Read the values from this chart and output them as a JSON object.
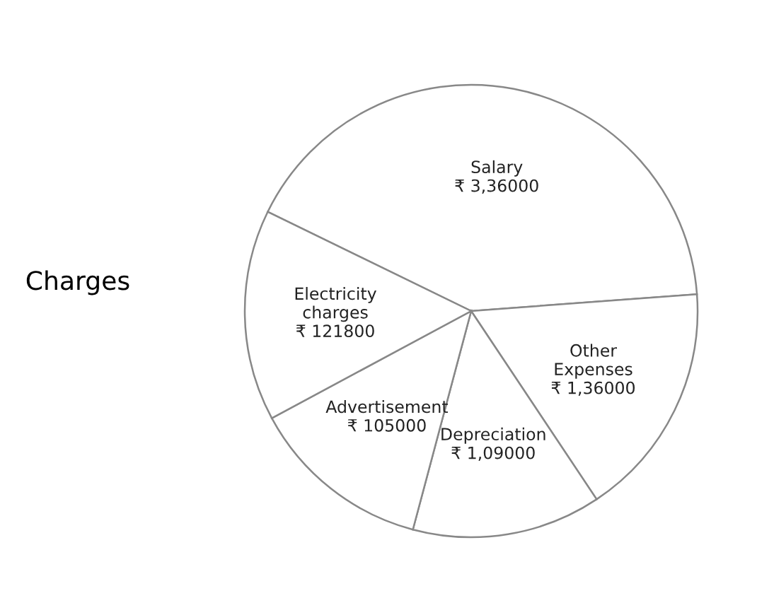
{
  "chart_data": {
    "type": "pie",
    "title": "Charges",
    "categories": [
      "Salary",
      "Other\nExpenses",
      "Depreciation",
      "Advertisement",
      "Electricity\ncharges"
    ],
    "values": [
      336000,
      136000,
      109000,
      105000,
      121800
    ],
    "value_labels": [
      "₹ 3,36000",
      "₹ 1,36000",
      "₹ 1,09000",
      "₹ 105000",
      "₹ 121800"
    ],
    "colors": [
      "#ffffff",
      "#ffffff",
      "#ffffff",
      "#ffffff",
      "#ffffff"
    ]
  }
}
